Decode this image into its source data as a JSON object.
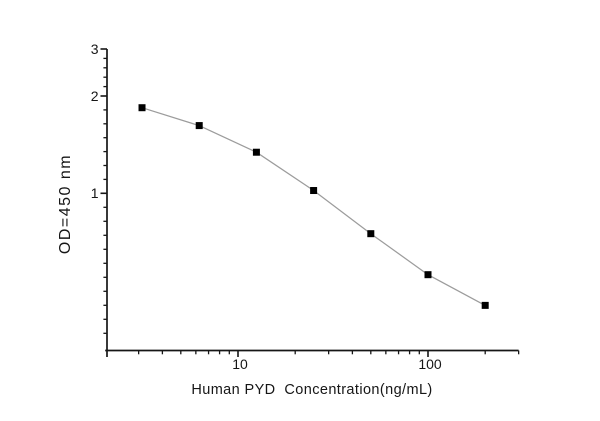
{
  "chart_data": {
    "type": "line",
    "title": "",
    "xlabel": "Human PYD  Concentration(ng/mL)",
    "ylabel": "OD=450 nm",
    "x_scale": "log",
    "y_scale": "log",
    "x": [
      3.125,
      6.25,
      12.5,
      25,
      50,
      100,
      200
    ],
    "y": [
      1.84,
      1.62,
      1.34,
      1.02,
      0.75,
      0.56,
      0.45
    ],
    "x_major_ticks": [
      10,
      100
    ],
    "x_minor_ticks": [
      3,
      4,
      5,
      6,
      7,
      8,
      9,
      20,
      30,
      40,
      50,
      60,
      70,
      80,
      90,
      200,
      300
    ],
    "y_major_ticks": [
      3,
      2,
      1
    ],
    "xlim": [
      2,
      300
    ],
    "ylim": [
      0.33,
      3
    ],
    "grid": false,
    "legend": "none",
    "marker": "filled-square",
    "colors": {
      "marker": "#000000",
      "line": "#9c9c9c",
      "axis": "#161616",
      "text": "#161616",
      "background": "#ffffff"
    }
  }
}
